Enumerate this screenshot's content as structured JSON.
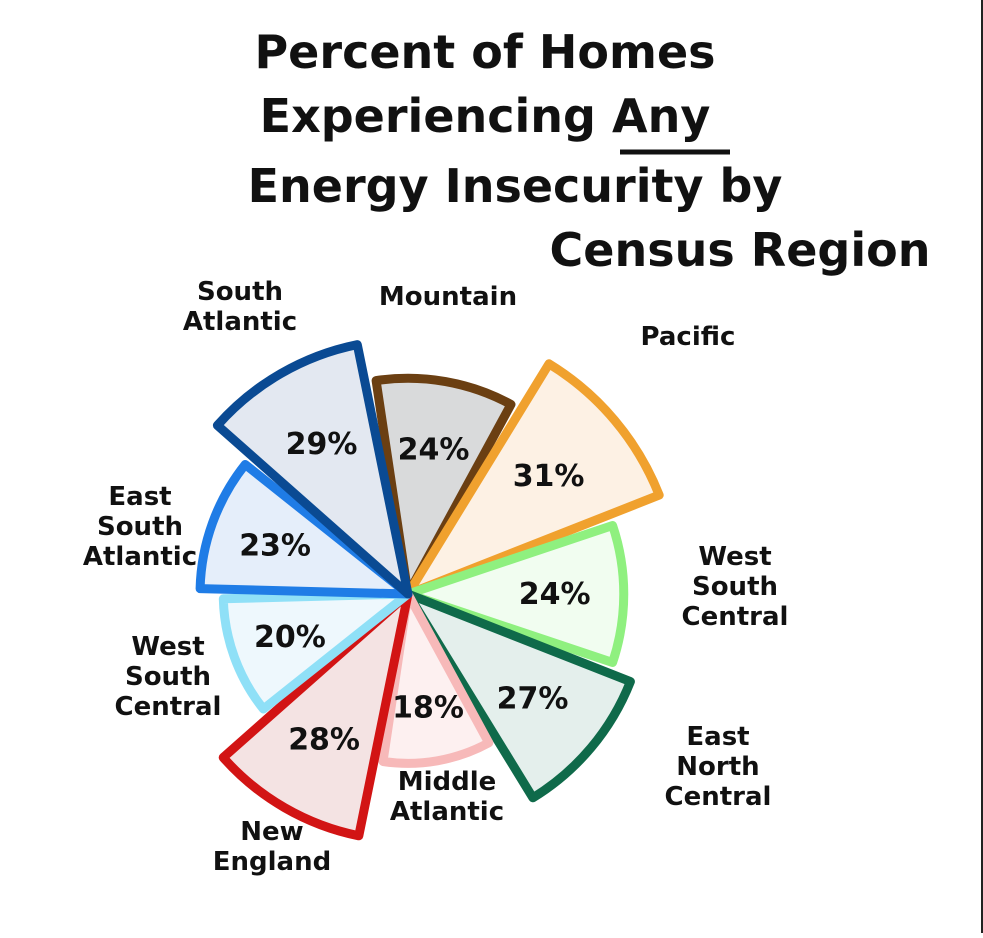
{
  "chart_data": {
    "type": "pie",
    "subtype": "polar-area (rose) chart, hand-drawn",
    "title_lines": [
      "Percent of Homes",
      "Experiencing Any",
      "Energy Insecurity by",
      "Census Region"
    ],
    "title": "Percent of Homes Experiencing Any Energy Insecurity by Census Region",
    "underlined_word": "Any",
    "slices": [
      {
        "id": "mountain",
        "label_lines": [
          "Mountain"
        ],
        "value": 24,
        "value_label": "24%",
        "fill": "#d9dadb",
        "stroke": "#6b3f12"
      },
      {
        "id": "pacific",
        "label_lines": [
          "Pacific"
        ],
        "value": 31,
        "value_label": "31%",
        "fill": "#fdf1e4",
        "stroke": "#f0a12e"
      },
      {
        "id": "west-south-central-right",
        "label_lines": [
          "West",
          "South",
          "Central"
        ],
        "value": 24,
        "value_label": "24%",
        "fill": "#f1fdf0",
        "stroke": "#8ff07f"
      },
      {
        "id": "east-north-central",
        "label_lines": [
          "East",
          "North",
          "Central"
        ],
        "value": 27,
        "value_label": "27%",
        "fill": "#e4efec",
        "stroke": "#0f6a4a"
      },
      {
        "id": "middle-atlantic",
        "label_lines": [
          "Middle",
          "Atlantic"
        ],
        "value": 18,
        "value_label": "18%",
        "fill": "#fdf0f0",
        "stroke": "#f7b9b9"
      },
      {
        "id": "new-england",
        "label_lines": [
          "New",
          "England"
        ],
        "value": 28,
        "value_label": "28%",
        "fill": "#f4e3e3",
        "stroke": "#d21414"
      },
      {
        "id": "west-south-central-left",
        "label_lines": [
          "West",
          "South",
          "Central"
        ],
        "value": 20,
        "value_label": "20%",
        "fill": "#eef8fd",
        "stroke": "#8fe0f7"
      },
      {
        "id": "east-south-atlantic",
        "label_lines": [
          "East",
          "South",
          "Atlantic"
        ],
        "value": 23,
        "value_label": "23%",
        "fill": "#e5eefa",
        "stroke": "#1f7ce6"
      },
      {
        "id": "south-atlantic",
        "label_lines": [
          "South",
          "Atlantic"
        ],
        "value": 29,
        "value_label": "29%",
        "fill": "#e3e8f1",
        "stroke": "#0a4a93"
      }
    ],
    "legend": "none",
    "grid": false
  }
}
